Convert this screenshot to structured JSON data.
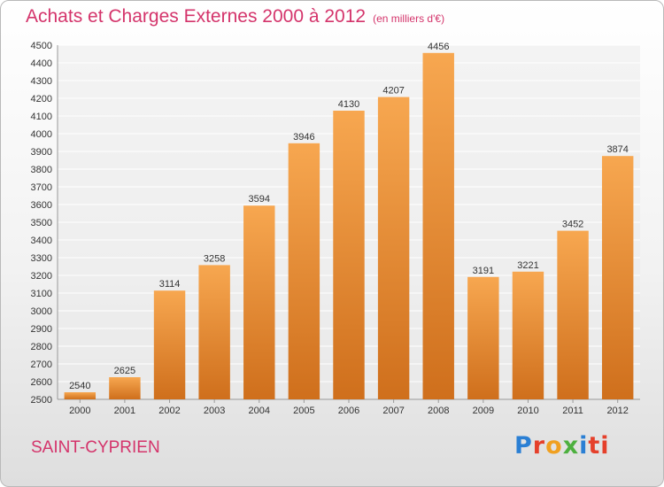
{
  "header": {
    "title": "Achats et Charges Externes 2000 à 2012",
    "subtitle": "(en milliers d'€)"
  },
  "footer": {
    "city": "SAINT-CYPRIEN",
    "logo_parts": [
      "P",
      "r",
      "o",
      "x",
      "i",
      "ti"
    ]
  },
  "colors": {
    "bar_light": "#f7a750",
    "bar_dark": "#cf6f1c",
    "title": "#d4346b",
    "grid": "#ffffff"
  },
  "chart_data": {
    "type": "bar",
    "title": "Achats et Charges Externes 2000 à 2012",
    "subtitle": "(en milliers d'€)",
    "categories": [
      "2000",
      "2001",
      "2002",
      "2003",
      "2004",
      "2005",
      "2006",
      "2007",
      "2008",
      "2009",
      "2010",
      "2011",
      "2012"
    ],
    "values": [
      2540,
      2625,
      3114,
      3258,
      3594,
      3946,
      4130,
      4207,
      4456,
      3191,
      3221,
      3452,
      3874
    ],
    "xlabel": "",
    "ylabel": "",
    "ylim": [
      2500,
      4500
    ],
    "yticks": [
      2500,
      2600,
      2700,
      2800,
      2900,
      3000,
      3100,
      3200,
      3300,
      3400,
      3500,
      3600,
      3700,
      3800,
      3900,
      4000,
      4100,
      4200,
      4300,
      4400,
      4500
    ],
    "grid": true,
    "legend": "none"
  }
}
